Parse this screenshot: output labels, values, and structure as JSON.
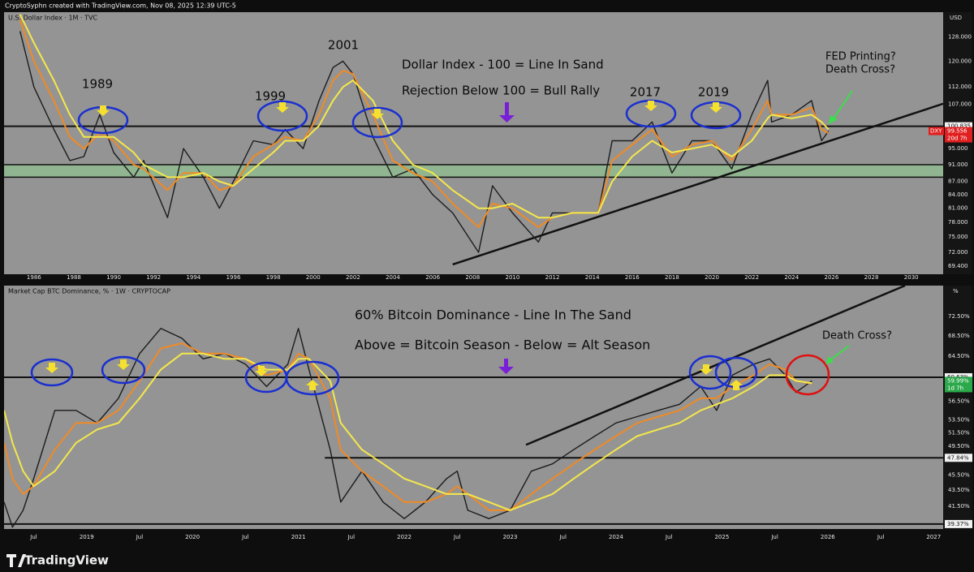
{
  "header": "CryptoSyphn created with TradingView.com, Nov 08, 2025 12:39 UTC-5",
  "footer": {
    "brand": "TradingView"
  },
  "chart_data": [
    {
      "type": "line",
      "title": "U.S. Dollar Index · 1M · TVC",
      "currency": "USD",
      "log": true,
      "x": [
        1985.3,
        1986,
        1987,
        1987.8,
        1988.5,
        1989.3,
        1990,
        1991,
        1991.5,
        1992.7,
        1993.5,
        1994.5,
        1995.3,
        1996,
        1997,
        1998,
        1998.6,
        1999.5,
        2000.3,
        2001,
        2001.5,
        2002,
        2003,
        2004,
        2005,
        2006,
        2007,
        2008.3,
        2009,
        2010,
        2011.3,
        2012,
        2013,
        2014.3,
        2015,
        2016,
        2017,
        2018,
        2019,
        2020,
        2021,
        2022,
        2022.8,
        2023,
        2024,
        2025,
        2025.5,
        2025.85
      ],
      "series": [
        {
          "color": "#1c1c1c",
          "values": [
            130,
            112,
            100,
            92,
            93,
            104,
            94,
            88,
            92,
            79,
            95,
            88,
            81,
            87,
            97,
            96,
            100,
            95,
            108,
            118,
            120,
            116,
            98,
            88,
            90,
            84,
            80,
            72,
            86,
            80,
            74,
            80,
            80,
            80,
            97,
            97,
            102,
            89,
            97,
            97,
            90,
            104,
            114,
            102,
            104,
            108,
            97,
            99.556
          ]
        },
        {
          "color": "#f08a24",
          "values": [
            134,
            120,
            108,
            98,
            95,
            99,
            97,
            91,
            90,
            85,
            89,
            89,
            85,
            86,
            93,
            96,
            98,
            97,
            104,
            114,
            117,
            116,
            104,
            92,
            89,
            87,
            82,
            77,
            82,
            81,
            77,
            79,
            80,
            80,
            92,
            96,
            100,
            93,
            96,
            97,
            92,
            100,
            108,
            104,
            104,
            106,
            100,
            99
          ]
        },
        {
          "color": "#f5e84a",
          "values": [
            136,
            126,
            114,
            104,
            98,
            98,
            98,
            94,
            91,
            88,
            88,
            89,
            87,
            86,
            90,
            94,
            97,
            97,
            101,
            108,
            112,
            114,
            108,
            97,
            91,
            89,
            85,
            81,
            81,
            82,
            79,
            79,
            80,
            80,
            87,
            93,
            97,
            94,
            95,
            96,
            93,
            97,
            103,
            104,
            103,
            104,
            102,
            100
          ]
        }
      ],
      "xlim": [
        1984.5,
        2031.6
      ],
      "xticks": [
        1986,
        1988,
        1990,
        1992,
        1994,
        1996,
        1998,
        2000,
        2002,
        2004,
        2006,
        2008,
        2010,
        2012,
        2014,
        2016,
        2018,
        2020,
        2022,
        2024,
        2026,
        2028,
        2030
      ],
      "ylim": [
        67.9,
        136.8
      ],
      "yticks": [
        {
          "value": 128,
          "label": "128.000"
        },
        {
          "value": 120,
          "label": "120.000"
        },
        {
          "value": 112,
          "label": "112.000"
        },
        {
          "value": 107,
          "label": "107.000"
        },
        {
          "value": 95,
          "label": "95.000"
        },
        {
          "value": 91,
          "label": "91.000"
        },
        {
          "value": 87,
          "label": "87.000"
        },
        {
          "value": 84,
          "label": "84.000"
        },
        {
          "value": 81,
          "label": "81.000"
        },
        {
          "value": 78,
          "label": "78.000"
        },
        {
          "value": 75,
          "label": "75.000"
        },
        {
          "value": 72,
          "label": "72.000"
        },
        {
          "value": 69.4,
          "label": "69.400"
        }
      ],
      "hlines": [
        100.835
      ],
      "zone": [
        88,
        91
      ],
      "trendline": {
        "x": [
          2007.0,
          2031.6
        ],
        "y": [
          69.7,
          107.1
        ]
      },
      "last": {
        "value": 99.556,
        "symbol": "DXY",
        "countdown": "20d 7h",
        "color": "#e02020"
      },
      "annotations": [
        "2001",
        "1989",
        "1999",
        "2017",
        "2019",
        "Dollar Index - 100 = Line In Sand",
        "Rejection Below 100 = Bull Rally",
        "FED Printing?",
        "Death Cross?"
      ]
    },
    {
      "type": "line",
      "title": "Market Cap BTC Dominance, % · 1W · CRYPTOCAP",
      "currency": "%",
      "log": true,
      "x": [
        2018.22,
        2018.3,
        2018.4,
        2018.5,
        2018.7,
        2018.9,
        2019.1,
        2019.3,
        2019.5,
        2019.7,
        2019.9,
        2020.1,
        2020.3,
        2020.5,
        2020.7,
        2020.9,
        2021.0,
        2021.1,
        2021.3,
        2021.4,
        2021.6,
        2021.8,
        2022.0,
        2022.2,
        2022.4,
        2022.5,
        2022.6,
        2022.8,
        2023.0,
        2023.2,
        2023.4,
        2023.6,
        2023.8,
        2024.0,
        2024.2,
        2024.4,
        2024.6,
        2024.8,
        2024.95,
        2025.1,
        2025.3,
        2025.45,
        2025.6,
        2025.7,
        2025.85
      ],
      "series": [
        {
          "color": "#1c1c1c",
          "values": [
            42,
            39,
            41,
            45,
            55,
            55,
            53,
            57,
            65,
            70,
            68,
            64,
            65,
            63,
            59,
            63,
            70,
            62,
            49,
            42,
            46,
            42,
            40,
            42,
            45,
            46,
            41,
            40,
            41,
            46,
            47,
            49,
            51,
            53,
            54,
            55,
            56,
            59,
            55,
            61,
            63,
            64,
            61,
            58,
            59.99
          ]
        },
        {
          "color": "#f08a24",
          "values": [
            50,
            45,
            43,
            44,
            49,
            53,
            53,
            55,
            60,
            66,
            67,
            65,
            65,
            64,
            61,
            62,
            65,
            64,
            57,
            49,
            46,
            44,
            42,
            42,
            43,
            44,
            43,
            41,
            41,
            43,
            45,
            47,
            49,
            51,
            53,
            54,
            55,
            57,
            57,
            59,
            61,
            63,
            62,
            60,
            59.5
          ]
        },
        {
          "color": "#f5e84a",
          "values": [
            55,
            50,
            46,
            44,
            46,
            50,
            52,
            53,
            57,
            62,
            65,
            65,
            64,
            64,
            62,
            62,
            64,
            64,
            60,
            53,
            49,
            47,
            45,
            44,
            43,
            43,
            43,
            42,
            41,
            42,
            43,
            45,
            47,
            49,
            51,
            52,
            53,
            55,
            56,
            57,
            59,
            61,
            61,
            60,
            59.6
          ]
        }
      ],
      "xlim": [
        2018.22,
        2027.09
      ],
      "xticks": [
        {
          "value": 2018.5,
          "label": "Jul"
        },
        2019,
        {
          "value": 2019.5,
          "label": "Jul"
        },
        2020,
        {
          "value": 2020.5,
          "label": "Jul"
        },
        2021,
        {
          "value": 2021.5,
          "label": "Jul"
        },
        2022,
        {
          "value": 2022.5,
          "label": "Jul"
        },
        2023,
        {
          "value": 2023.5,
          "label": "Jul"
        },
        2024,
        {
          "value": 2024.5,
          "label": "Jul"
        },
        2025,
        {
          "value": 2025.5,
          "label": "Jul"
        },
        2026,
        {
          "value": 2026.5,
          "label": "Jul"
        },
        2027
      ],
      "ylim": [
        38.8,
        79.4
      ],
      "yticks": [
        {
          "value": 72.5,
          "label": "72.50%"
        },
        {
          "value": 68.5,
          "label": "68.50%"
        },
        {
          "value": 64.5,
          "label": "64.50%"
        },
        {
          "value": 56.5,
          "label": "56.50%"
        },
        {
          "value": 53.5,
          "label": "53.50%"
        },
        {
          "value": 51.5,
          "label": "51.50%"
        },
        {
          "value": 49.5,
          "label": "49.50%"
        },
        {
          "value": 45.5,
          "label": "45.50%"
        },
        {
          "value": 43.5,
          "label": "43.50%"
        },
        {
          "value": 41.5,
          "label": "41.50%"
        }
      ],
      "hlines": [
        {
          "value": 60.63,
          "label": "60.63%"
        },
        {
          "value": 47.84,
          "label": "47.84%"
        },
        {
          "value": 39.37,
          "label": "39.37%"
        }
      ],
      "trendline": {
        "x": [
          2023.15,
          2026.73
        ],
        "y": [
          49.7,
          79.4
        ]
      },
      "last": {
        "value": 59.99,
        "label": "59.99%",
        "countdown": "1d 7h",
        "color": "#2aa84a"
      },
      "annotations": [
        "60% Bitcoin Dominance - Line In The Sand",
        "Above = Bitcoin Season - Below = Alt Season",
        "Death Cross?"
      ]
    }
  ]
}
